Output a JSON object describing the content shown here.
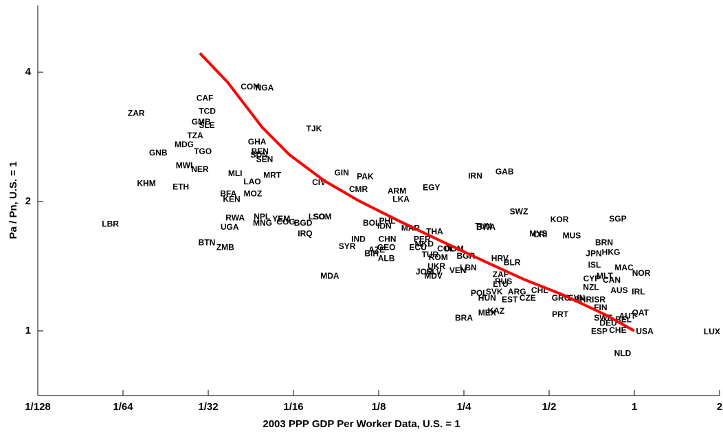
{
  "chart_data": {
    "type": "scatter",
    "xlabel": "2003 PPP GDP Per Worker Data, U.S. = 1",
    "ylabel": "Pa / Pn,  U.S. = 1",
    "xscale": "log",
    "yscale": "log",
    "xlim": [
      0.0078125,
      2
    ],
    "ylim": [
      0.7071,
      5.72
    ],
    "xticks": [
      {
        "value": 0.0078125,
        "label": "1/128"
      },
      {
        "value": 0.015625,
        "label": "1/64"
      },
      {
        "value": 0.03125,
        "label": "1/32"
      },
      {
        "value": 0.0625,
        "label": "1/16"
      },
      {
        "value": 0.125,
        "label": "1/8"
      },
      {
        "value": 0.25,
        "label": "1/4"
      },
      {
        "value": 0.5,
        "label": "1/2"
      },
      1,
      2
    ],
    "yticks": [
      1,
      2,
      4
    ],
    "color": "#000000",
    "labels": [
      "ZAR",
      "CAF",
      "TCD",
      "GMB",
      "SLE",
      "TZA",
      "MDG",
      "GNB",
      "TGO",
      "MWI",
      "NER",
      "KHM",
      "ETH",
      "COM",
      "NGA",
      "TJK",
      "GHA",
      "BEN",
      "SDN",
      "SEN",
      "MLI",
      "MRT",
      "LAO",
      "BFA",
      "MOZ",
      "KEN",
      "GIN",
      "PAK",
      "CIV",
      "CMR",
      "IRN",
      "GAB",
      "ARM",
      "EGY",
      "LKA",
      "LBR",
      "RWA",
      "UGA",
      "NPL",
      "MNG",
      "YEM",
      "COG",
      "BGD",
      "IRQ",
      "LSO",
      "SOM",
      "BOL",
      "PHL",
      "IDN",
      "MAR",
      "THA",
      "PER",
      "TUN",
      "BWA",
      "SWZ",
      "KOR",
      "MYS",
      "CRI",
      "MUS",
      "SGP",
      "BTN",
      "ZMB",
      "SYR",
      "IND",
      "CHN",
      "GEO",
      "AZE",
      "BIH",
      "ALB",
      "ECU",
      "MKD",
      "TUR",
      "ROM",
      "COL",
      "DOM",
      "BGR",
      "JPN",
      "HKG",
      "BRN",
      "ISL",
      "MAC",
      "NOR",
      "HRV",
      "BLR",
      "UKR",
      "LBN",
      "JOR",
      "SLV",
      "MDV",
      "VEN",
      "MDA",
      "ZAF",
      "LTU",
      "RUS",
      "CYP",
      "MLT",
      "CAN",
      "NZL",
      "POL",
      "SVK",
      "ARG",
      "CHL",
      "HUN",
      "EST",
      "CZE",
      "GRC",
      "SVN",
      "BHR",
      "ISR",
      "AUS",
      "IRL",
      "FIN",
      "SWE",
      "AUT",
      "DEU",
      "BEL",
      "ESP",
      "CHE",
      "USA",
      "QAT",
      "BRA",
      "MEX",
      "KAZ",
      "PRT",
      "NLD",
      "LUX"
    ],
    "x": [
      0.0174,
      0.0304,
      0.031,
      0.0295,
      0.0309,
      0.0281,
      0.0257,
      0.0208,
      0.0299,
      0.0257,
      0.0292,
      0.0189,
      0.025,
      0.044,
      0.0494,
      0.0739,
      0.0465,
      0.0476,
      0.0473,
      0.0494,
      0.0389,
      0.0526,
      0.0447,
      0.0368,
      0.0449,
      0.0378,
      0.0925,
      0.112,
      0.0769,
      0.106,
      0.274,
      0.348,
      0.145,
      0.192,
      0.15,
      0.0141,
      0.0389,
      0.0372,
      0.0484,
      0.0486,
      0.0566,
      0.0588,
      0.0676,
      0.0687,
      0.0756,
      0.079,
      0.118,
      0.134,
      0.131,
      0.162,
      0.197,
      0.178,
      0.293,
      0.299,
      0.391,
      0.544,
      0.458,
      0.465,
      0.601,
      0.874,
      0.0309,
      0.0359,
      0.0967,
      0.106,
      0.134,
      0.133,
      0.123,
      0.118,
      0.133,
      0.172,
      0.181,
      0.19,
      0.203,
      0.216,
      0.231,
      0.254,
      0.719,
      0.827,
      0.782,
      0.723,
      0.92,
      1.058,
      0.335,
      0.37,
      0.2,
      0.259,
      0.181,
      0.196,
      0.195,
      0.238,
      0.084,
      0.337,
      0.337,
      0.345,
      0.707,
      0.786,
      0.832,
      0.703,
      0.283,
      0.32,
      0.385,
      0.463,
      0.302,
      0.363,
      0.42,
      0.55,
      0.625,
      0.658,
      0.748,
      0.884,
      1.034,
      0.76,
      0.777,
      0.945,
      0.809,
      0.915,
      0.752,
      0.874,
      1.088,
      1.05,
      0.25,
      0.302,
      0.325,
      0.547,
      0.909,
      1.88
    ],
    "y": [
      3.2,
      3.47,
      3.24,
      3.06,
      3.0,
      2.84,
      2.71,
      2.59,
      2.61,
      2.42,
      2.37,
      2.2,
      2.16,
      3.69,
      3.67,
      2.95,
      2.75,
      2.61,
      2.56,
      2.5,
      2.32,
      2.3,
      2.22,
      2.08,
      2.08,
      2.02,
      2.33,
      2.28,
      2.21,
      2.13,
      2.29,
      2.34,
      2.11,
      2.15,
      2.02,
      1.77,
      1.83,
      1.74,
      1.84,
      1.78,
      1.82,
      1.79,
      1.78,
      1.68,
      1.84,
      1.84,
      1.78,
      1.8,
      1.75,
      1.73,
      1.7,
      1.63,
      1.75,
      1.74,
      1.89,
      1.81,
      1.68,
      1.67,
      1.66,
      1.82,
      1.6,
      1.56,
      1.57,
      1.63,
      1.63,
      1.56,
      1.54,
      1.51,
      1.47,
      1.56,
      1.59,
      1.5,
      1.48,
      1.55,
      1.55,
      1.49,
      1.51,
      1.52,
      1.6,
      1.42,
      1.4,
      1.36,
      1.47,
      1.44,
      1.41,
      1.4,
      1.37,
      1.37,
      1.34,
      1.38,
      1.34,
      1.35,
      1.28,
      1.3,
      1.32,
      1.34,
      1.31,
      1.26,
      1.22,
      1.23,
      1.23,
      1.24,
      1.19,
      1.18,
      1.19,
      1.19,
      1.19,
      1.18,
      1.18,
      1.24,
      1.23,
      1.13,
      1.07,
      1.08,
      1.04,
      1.06,
      0.996,
      1.0,
      0.996,
      1.1,
      1.07,
      1.1,
      1.11,
      1.09,
      0.885,
      0.993
    ],
    "fit": {
      "color": "#ff0000",
      "x": [
        0.0292,
        0.0366,
        0.0484,
        0.0605,
        0.08,
        0.106,
        0.148,
        0.207,
        0.29,
        0.405,
        0.565,
        0.791,
        1
      ],
      "y": [
        4.43,
        3.79,
        2.98,
        2.57,
        2.24,
        2.01,
        1.8,
        1.62,
        1.46,
        1.32,
        1.21,
        1.09,
        1
      ]
    }
  }
}
